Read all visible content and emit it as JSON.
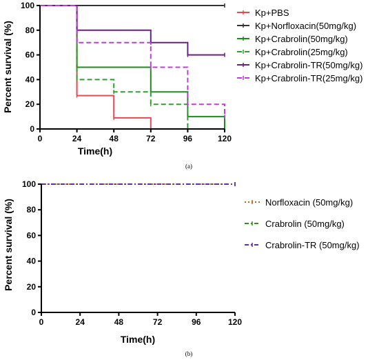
{
  "chart_data": [
    {
      "type": "line",
      "panel_label": "(a)",
      "xlabel": "Time(h)",
      "ylabel": "Percent survival (%)",
      "xlim": [
        0,
        120
      ],
      "ylim": [
        0,
        100
      ],
      "xticks": [
        0,
        24,
        48,
        72,
        96,
        120
      ],
      "yticks": [
        0,
        20,
        40,
        60,
        80,
        100
      ],
      "step": true,
      "legend_position": "right",
      "series": [
        {
          "name": "Kp+PBS",
          "color": "#e8484f",
          "dash": "solid",
          "x": [
            0,
            24,
            48,
            72
          ],
          "y": [
            100,
            27,
            9,
            0
          ]
        },
        {
          "name": "Kp+Norfloxacin(50mg/kg)",
          "color": "#333333",
          "dash": "solid",
          "x": [
            0,
            120
          ],
          "y": [
            100,
            100
          ]
        },
        {
          "name": "Kp+Crabrolin(50mg/kg)",
          "color": "#1f8a1f",
          "dash": "solid",
          "x": [
            0,
            24,
            72,
            96,
            120
          ],
          "y": [
            100,
            50,
            30,
            10,
            0
          ]
        },
        {
          "name": "Kp+Crabrolin(25mg/kg)",
          "color": "#2ca02c",
          "dash": "dashed",
          "x": [
            0,
            24,
            48,
            72,
            96
          ],
          "y": [
            100,
            40,
            30,
            20,
            0
          ]
        },
        {
          "name": "Kp+Crabrolin-TR(50mg/kg)",
          "color": "#6a1f8a",
          "dash": "solid",
          "x": [
            0,
            24,
            72,
            96,
            120
          ],
          "y": [
            100,
            80,
            70,
            60,
            60
          ]
        },
        {
          "name": "Kp+Crabrolin-TR(25mg/kg)",
          "color": "#c03cd8",
          "dash": "dashed",
          "x": [
            0,
            24,
            72,
            96,
            120
          ],
          "y": [
            100,
            70,
            50,
            20,
            10
          ]
        }
      ]
    },
    {
      "type": "line",
      "panel_label": "(b)",
      "xlabel": "Time(h)",
      "ylabel": "Percent survival (%)",
      "xlim": [
        0,
        120
      ],
      "ylim": [
        0,
        100
      ],
      "xticks": [
        0,
        24,
        48,
        72,
        96,
        120
      ],
      "yticks": [
        0,
        20,
        40,
        60,
        80,
        100
      ],
      "step": true,
      "legend_position": "right",
      "series": [
        {
          "name": "Norfloxacin (50mg/kg)",
          "color": "#b5651d",
          "dash": "dotted",
          "x": [
            0,
            120
          ],
          "y": [
            100,
            100
          ]
        },
        {
          "name": "Crabrolin (50mg/kg)",
          "color": "#3a8a1f",
          "dash": "dashdot",
          "x": [
            0,
            120
          ],
          "y": [
            100,
            100
          ]
        },
        {
          "name": "Crabrolin-TR (50mg/kg)",
          "color": "#5b2fa6",
          "dash": "dashdot",
          "x": [
            0,
            120
          ],
          "y": [
            100,
            100
          ]
        }
      ]
    }
  ]
}
